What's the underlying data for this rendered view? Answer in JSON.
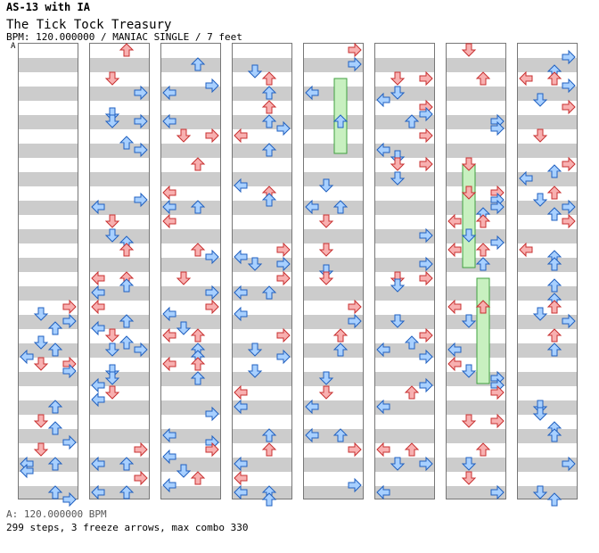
{
  "header": {
    "artist": "AS-13 with IA",
    "title": "The Tick Tock Treasury",
    "meta": "BPM: 120.000000 / MANIAC SINGLE / 7 feet",
    "bpm_marker": "A"
  },
  "footer": {
    "bpm_line": "A: 120.000000 BPM",
    "stats": "299 steps, 3 freeze arrows, max combo 330"
  },
  "colors": {
    "quarter_note": "#f8b0b0",
    "eighth_note": "#a8d0ff",
    "freeze": "#c8f0c0",
    "stripe": "#cccccc"
  },
  "chart": {
    "columns": 8,
    "steps": 299,
    "freeze_arrows": 3,
    "max_combo": 330
  }
}
